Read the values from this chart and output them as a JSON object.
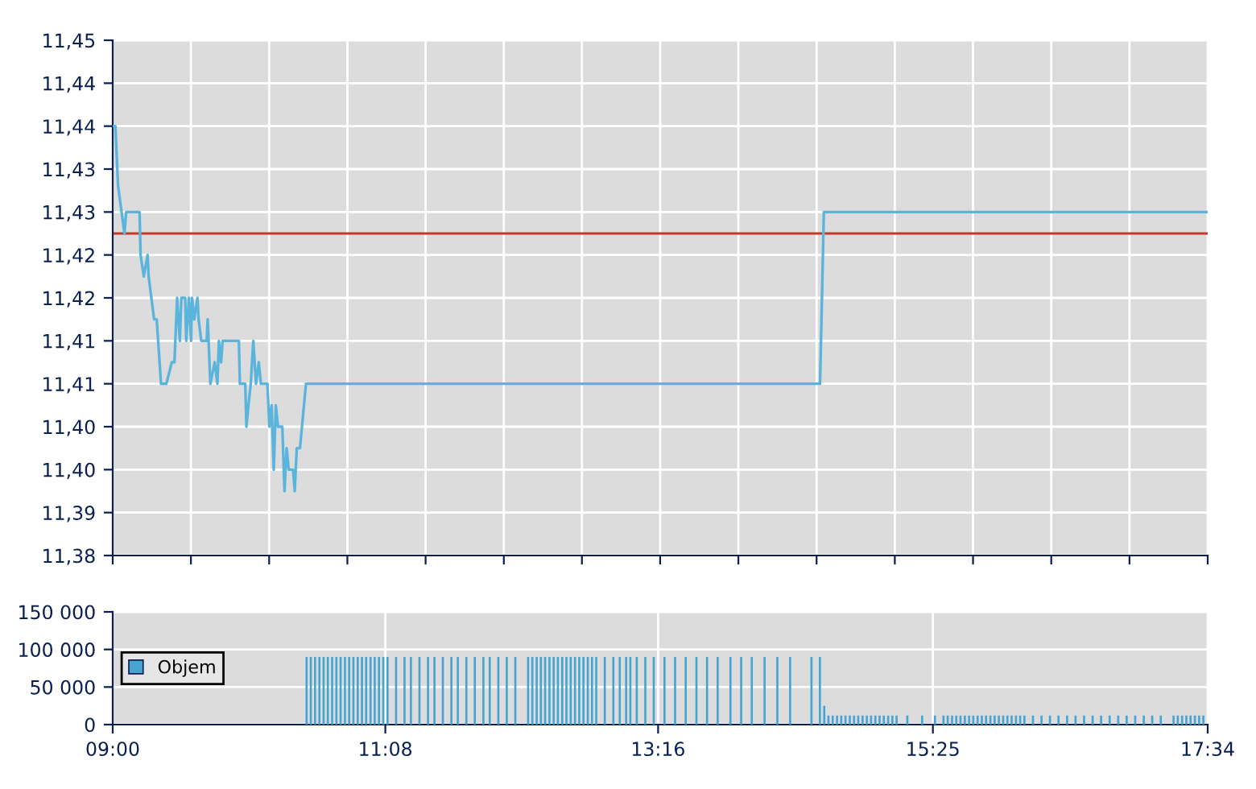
{
  "chart_data": [
    {
      "type": "line",
      "color": "#5ab4dc",
      "grid": true,
      "tick_labels": "y",
      "x": [
        9.0,
        9.021,
        9.042,
        9.092,
        9.105,
        9.21,
        9.218,
        9.243,
        9.273,
        9.281,
        9.324,
        9.344,
        9.378,
        9.42,
        9.462,
        9.483,
        9.504,
        9.525,
        9.537,
        9.567,
        9.575,
        9.596,
        9.613,
        9.621,
        9.638,
        9.663,
        9.672,
        9.693,
        9.735,
        9.743,
        9.764,
        9.798,
        9.819,
        9.831,
        9.848,
        9.86,
        9.987,
        9.995,
        10.037,
        10.046,
        10.062,
        10.08,
        10.1,
        10.121,
        10.143,
        10.159,
        10.21,
        10.226,
        10.243,
        10.26,
        10.276,
        10.293,
        10.327,
        10.344,
        10.361,
        10.377,
        10.411,
        10.424,
        10.44,
        10.465,
        10.512,
        14.534,
        14.564,
        17.567
      ],
      "values": [
        11.435,
        11.435,
        11.428,
        11.4225,
        11.425,
        11.425,
        11.42,
        11.4175,
        11.42,
        11.4175,
        11.4125,
        11.4125,
        11.405,
        11.405,
        11.4075,
        11.4075,
        11.415,
        11.41,
        11.415,
        11.415,
        11.41,
        11.415,
        11.41,
        11.415,
        11.4125,
        11.415,
        11.4125,
        11.41,
        11.41,
        11.4125,
        11.405,
        11.4075,
        11.405,
        11.41,
        11.4075,
        11.41,
        11.41,
        11.405,
        11.405,
        11.4,
        11.4025,
        11.405,
        11.41,
        11.405,
        11.4075,
        11.405,
        11.405,
        11.4,
        11.4025,
        11.395,
        11.4025,
        11.4,
        11.4,
        11.3925,
        11.3975,
        11.395,
        11.395,
        11.3925,
        11.3975,
        11.3975,
        11.405,
        11.405,
        11.425,
        11.425
      ],
      "xlim": [
        9.0,
        17.567
      ],
      "xticks": [
        {
          "value": 9.0,
          "label": null
        },
        {
          "value": 9.612,
          "label": null
        },
        {
          "value": 10.224,
          "label": null
        },
        {
          "value": 10.836,
          "label": null
        },
        {
          "value": 11.448,
          "label": null
        },
        {
          "value": 12.06,
          "label": null
        },
        {
          "value": 12.671,
          "label": null
        },
        {
          "value": 13.283,
          "label": null
        },
        {
          "value": 13.895,
          "label": null
        },
        {
          "value": 14.507,
          "label": null
        },
        {
          "value": 15.119,
          "label": null
        },
        {
          "value": 15.731,
          "label": null
        },
        {
          "value": 16.343,
          "label": null
        },
        {
          "value": 16.955,
          "label": null
        },
        {
          "value": 17.567,
          "label": null
        }
      ],
      "ylim": [
        11.385,
        11.445
      ],
      "yticks": [
        {
          "value": 11.385,
          "label": "11,38"
        },
        {
          "value": 11.39,
          "label": "11,39"
        },
        {
          "value": 11.395,
          "label": "11,40"
        },
        {
          "value": 11.4,
          "label": "11,40"
        },
        {
          "value": 11.405,
          "label": "11,41"
        },
        {
          "value": 11.41,
          "label": "11,41"
        },
        {
          "value": 11.415,
          "label": "11,42"
        },
        {
          "value": 11.42,
          "label": "11,42"
        },
        {
          "value": 11.425,
          "label": "11,43"
        },
        {
          "value": 11.43,
          "label": "11,43"
        },
        {
          "value": 11.435,
          "label": "11,44"
        },
        {
          "value": 11.44,
          "label": "11,44"
        },
        {
          "value": 11.445,
          "label": "11,45"
        }
      ],
      "ref_lines": [
        {
          "axis": "y",
          "value": 11.4225,
          "color": "#c0392b"
        }
      ]
    },
    {
      "type": "bar",
      "grid": true,
      "legend": "left",
      "series": [
        {
          "name": "Objem",
          "color": "#46a5d0",
          "x": [
            10.517,
            10.55,
            10.583,
            10.617,
            10.65,
            10.683,
            10.717,
            10.75,
            10.783,
            10.817,
            10.85,
            10.883,
            10.917,
            10.95,
            10.983,
            11.017,
            11.05,
            11.083,
            11.117,
            11.15,
            11.217,
            11.283,
            11.333,
            11.4,
            11.467,
            11.517,
            11.583,
            11.65,
            11.7,
            11.767,
            11.833,
            11.9,
            11.95,
            12.017,
            12.083,
            12.15,
            12.25,
            12.283,
            12.317,
            12.35,
            12.383,
            12.417,
            12.45,
            12.483,
            12.517,
            12.55,
            12.583,
            12.617,
            12.65,
            12.683,
            12.717,
            12.75,
            12.783,
            12.85,
            12.917,
            12.967,
            13.017,
            13.05,
            13.1,
            13.167,
            13.233,
            13.317,
            13.4,
            13.483,
            13.567,
            13.65,
            13.733,
            13.833,
            13.917,
            14.0,
            14.1,
            14.2,
            14.3,
            14.467,
            14.533,
            14.567,
            14.6,
            14.633,
            14.667,
            14.7,
            14.733,
            14.767,
            14.8,
            14.833,
            14.867,
            14.9,
            14.933,
            14.967,
            15.0,
            15.033,
            15.067,
            15.1,
            15.133,
            15.217,
            15.333,
            15.433,
            15.5,
            15.533,
            15.567,
            15.6,
            15.633,
            15.667,
            15.7,
            15.733,
            15.767,
            15.8,
            15.833,
            15.867,
            15.9,
            15.933,
            15.967,
            16.0,
            16.033,
            16.067,
            16.1,
            16.133,
            16.2,
            16.267,
            16.333,
            16.4,
            16.467,
            16.533,
            16.6,
            16.667,
            16.733,
            16.8,
            16.867,
            16.933,
            17.0,
            17.067,
            17.133,
            17.2,
            17.3,
            17.333,
            17.367,
            17.4,
            17.433,
            17.467,
            17.5,
            17.533
          ],
          "values": [
            90000,
            90000,
            90000,
            90000,
            90000,
            90000,
            90000,
            90000,
            90000,
            90000,
            90000,
            90000,
            90000,
            90000,
            90000,
            90000,
            90000,
            90000,
            90000,
            90000,
            90000,
            90000,
            90000,
            90000,
            90000,
            90000,
            90000,
            90000,
            90000,
            90000,
            90000,
            90000,
            90000,
            90000,
            90000,
            90000,
            90000,
            90000,
            90000,
            90000,
            90000,
            90000,
            90000,
            90000,
            90000,
            90000,
            90000,
            90000,
            90000,
            90000,
            90000,
            90000,
            90000,
            90000,
            90000,
            90000,
            90000,
            90000,
            90000,
            90000,
            90000,
            90000,
            90000,
            90000,
            90000,
            90000,
            90000,
            90000,
            90000,
            90000,
            90000,
            90000,
            90000,
            90000,
            90000,
            25000,
            12000,
            12000,
            12000,
            12000,
            12000,
            12000,
            12000,
            12000,
            12000,
            12000,
            12000,
            12000,
            12000,
            12000,
            12000,
            12000,
            12000,
            12000,
            12000,
            12000,
            12000,
            12000,
            12000,
            12000,
            12000,
            12000,
            12000,
            12000,
            12000,
            12000,
            12000,
            12000,
            12000,
            12000,
            12000,
            12000,
            12000,
            12000,
            12000,
            12000,
            12000,
            12000,
            12000,
            12000,
            12000,
            12000,
            12000,
            12000,
            12000,
            12000,
            12000,
            12000,
            12000,
            12000,
            12000,
            12000,
            12000,
            12000,
            12000,
            12000,
            12000,
            12000,
            12000,
            12000
          ]
        }
      ],
      "xlim": [
        9.0,
        17.567
      ],
      "xticks": [
        {
          "value": 9.0,
          "label": "09:00"
        },
        {
          "value": 11.133,
          "label": "11:08"
        },
        {
          "value": 13.267,
          "label": "13:16"
        },
        {
          "value": 15.417,
          "label": "15:25"
        },
        {
          "value": 17.567,
          "label": "17:34"
        }
      ],
      "ylim": [
        0,
        150000
      ],
      "yticks": [
        {
          "value": 0,
          "label": "0"
        },
        {
          "value": 50000,
          "label": "50 000"
        },
        {
          "value": 100000,
          "label": "100 000"
        },
        {
          "value": 150000,
          "label": "150 000"
        }
      ]
    }
  ]
}
